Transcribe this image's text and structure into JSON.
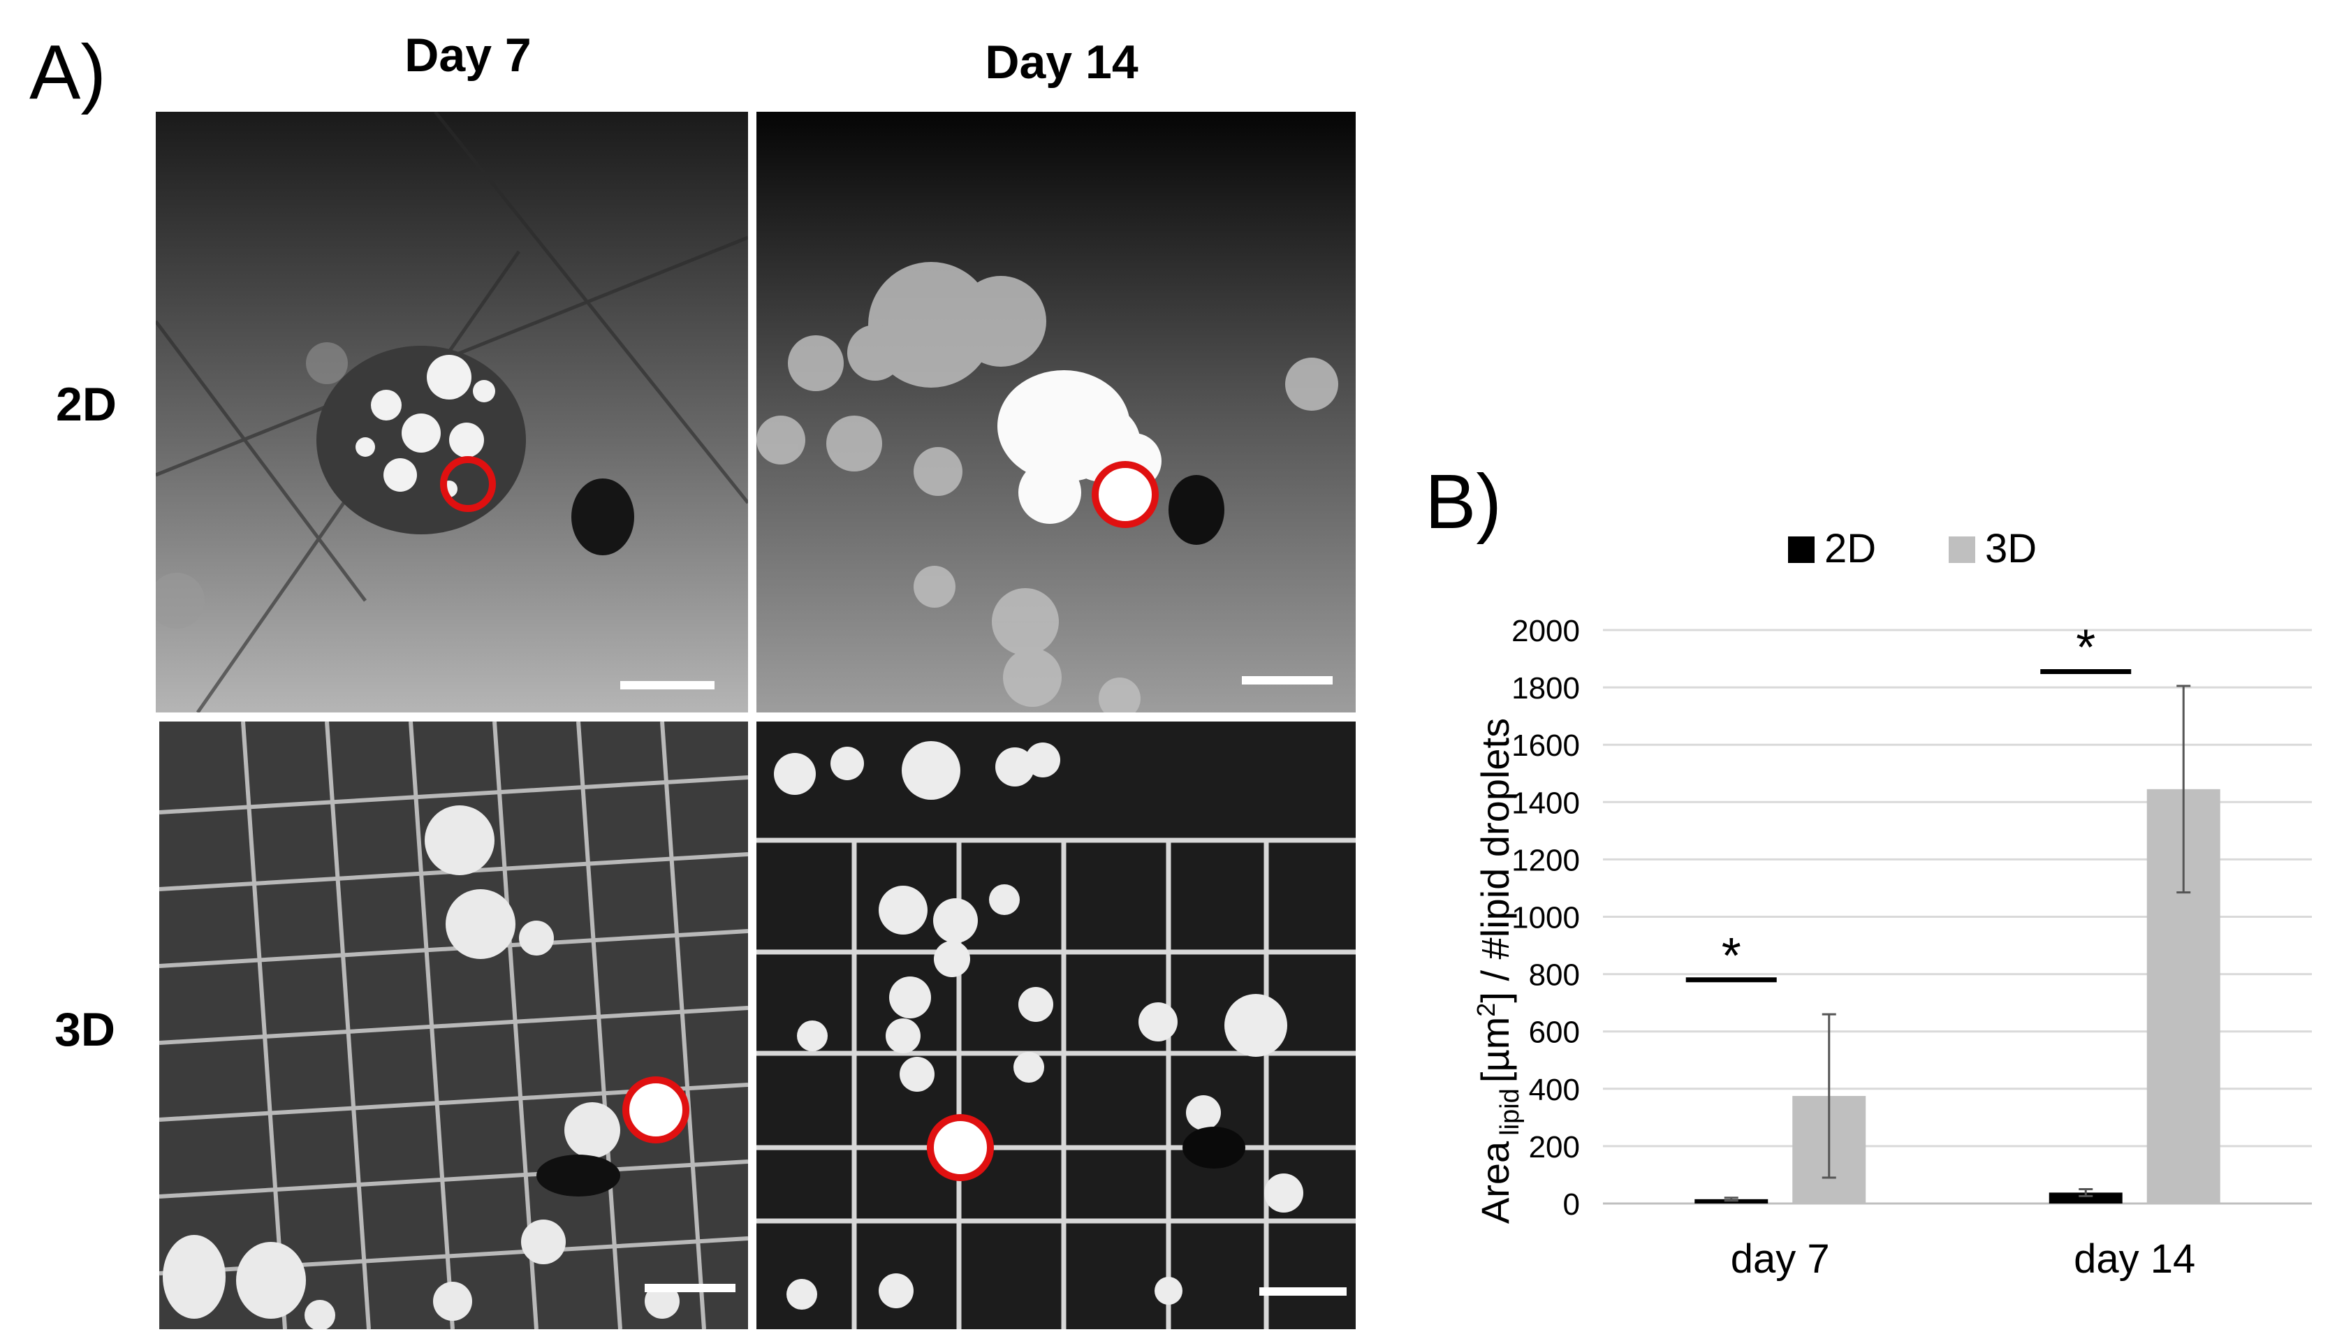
{
  "panel_a": {
    "label": "A)",
    "columns": [
      "Day 7",
      "Day 14"
    ],
    "rows": [
      "2D",
      "3D"
    ]
  },
  "panel_b": {
    "label": "B)"
  },
  "chart_data": {
    "type": "bar",
    "categories": [
      "day 7",
      "day 14"
    ],
    "series": [
      {
        "name": "2D",
        "color": "#000000",
        "values": [
          15,
          38
        ],
        "errors": [
          5,
          12
        ]
      },
      {
        "name": "3D",
        "color": "#bfbfbf",
        "values": [
          375,
          1445
        ],
        "errors": [
          285,
          360
        ]
      }
    ],
    "ylabel_parts": [
      "Area",
      "lipid",
      "[µm",
      "2",
      "] / #lipid droplets"
    ],
    "ylim": [
      0,
      2000
    ],
    "yticks": [
      "0",
      "200",
      "400",
      "600",
      "800",
      "1000",
      "1200",
      "1400",
      "1600",
      "1800",
      "2000"
    ],
    "grid": true,
    "legend_position": "top",
    "annotations": [
      {
        "text": "*",
        "category": "day 7",
        "level": 780
      },
      {
        "text": "*",
        "category": "day 14",
        "level": 1855
      }
    ]
  },
  "colors": {
    "marker_ring": "#e01010",
    "grid": "#d9d9d9"
  }
}
